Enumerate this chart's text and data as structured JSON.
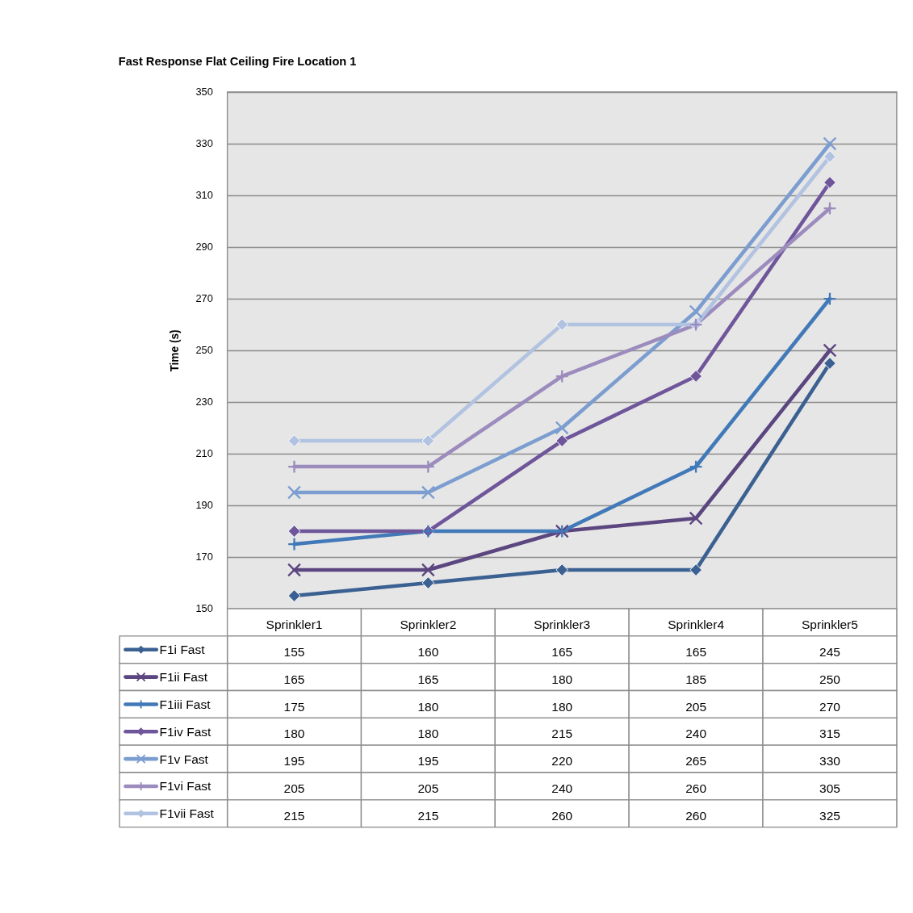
{
  "chart_data": {
    "type": "line",
    "title": "Fast Response Flat Ceiling Fire Location 1",
    "ylabel": "Time (s)",
    "categories": [
      "Sprinkler1",
      "Sprinkler2",
      "Sprinkler3",
      "Sprinkler4",
      "Sprinkler5"
    ],
    "series": [
      {
        "name": "F1i Fast",
        "color": "#3b6192",
        "marker": "diamond",
        "values": [
          155,
          160,
          165,
          165,
          245
        ]
      },
      {
        "name": "F1ii Fast",
        "color": "#5c4680",
        "marker": "cross",
        "values": [
          165,
          165,
          180,
          185,
          250
        ]
      },
      {
        "name": "F1iii Fast",
        "color": "#4279b8",
        "marker": "plus",
        "values": [
          175,
          180,
          180,
          205,
          270
        ]
      },
      {
        "name": "F1iv Fast",
        "color": "#6f569b",
        "marker": "diamond",
        "values": [
          180,
          180,
          215,
          240,
          315
        ]
      },
      {
        "name": "F1v Fast",
        "color": "#7c9dd0",
        "marker": "cross",
        "values": [
          195,
          195,
          220,
          265,
          330
        ]
      },
      {
        "name": "F1vi Fast",
        "color": "#9c8bbd",
        "marker": "plus",
        "values": [
          205,
          205,
          240,
          260,
          305
        ]
      },
      {
        "name": "F1vii Fast",
        "color": "#b1c3e1",
        "marker": "diamond",
        "values": [
          215,
          215,
          260,
          260,
          325
        ]
      }
    ],
    "ylim": [
      150,
      350
    ],
    "yticks": [
      150,
      170,
      190,
      210,
      230,
      250,
      270,
      290,
      310,
      330,
      350
    ],
    "grid": "y",
    "legend": "bottom left",
    "data_labels": true,
    "tick_labels": "y",
    "line_style": "solid"
  }
}
